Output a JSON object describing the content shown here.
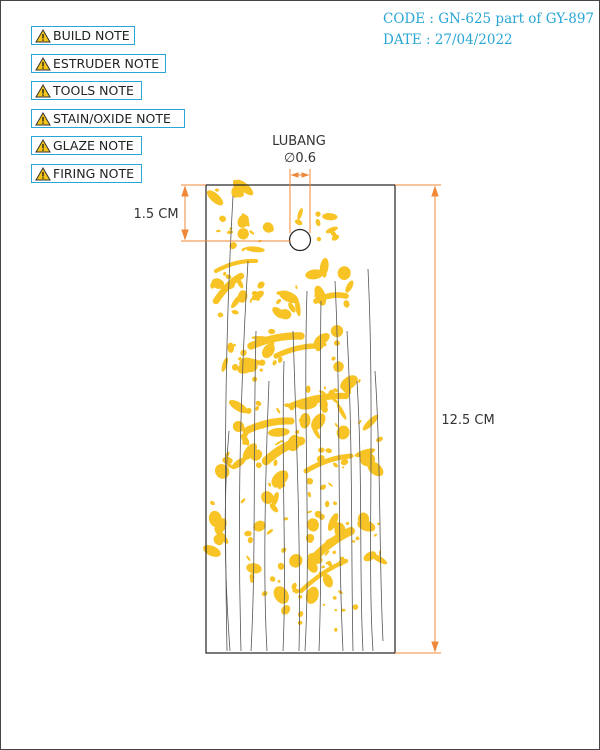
{
  "header": {
    "code": "CODE : GN-625 part of GY-897",
    "date": "DATE : 27/04/2022"
  },
  "notes": [
    {
      "label": "BUILD NOTE"
    },
    {
      "label": "ESTRUDER NOTE"
    },
    {
      "label": "TOOLS NOTE"
    },
    {
      "label": "STAIN/OXIDE NOTE"
    },
    {
      "label": "GLAZE NOTE"
    },
    {
      "label": "FIRING NOTE"
    }
  ],
  "drawing": {
    "hole_label": "LUBANG",
    "hole_size": "∅0.6",
    "top_offset": "1.5 CM",
    "height": "12.5 CM"
  },
  "colors": {
    "accent": "#29a6d6",
    "dimension": "#f0883a",
    "glaze": "#f7c325",
    "outline": "#222222"
  }
}
